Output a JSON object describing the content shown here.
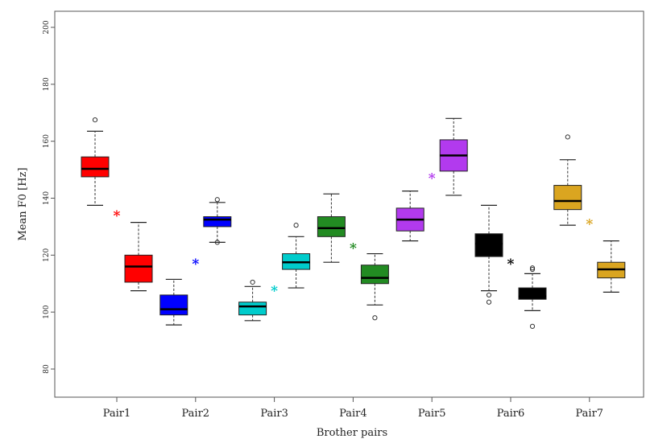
{
  "chart_data": {
    "type": "box",
    "xlabel": "Brother pairs",
    "ylabel": "Mean F0 [Hz]",
    "ylim": [
      70,
      205
    ],
    "yticks": [
      80,
      100,
      120,
      140,
      160,
      180,
      200
    ],
    "categories": [
      "Pair1",
      "Pair2",
      "Pair3",
      "Pair4",
      "Pair5",
      "Pair6",
      "Pair7"
    ],
    "grid": false,
    "legend": "none",
    "groups": [
      {
        "category": "Pair1",
        "color": "#ff0000",
        "boxes": [
          {
            "whisker_low": 137.5,
            "q1": 147.5,
            "median": 150.3,
            "q3": 154.5,
            "whisker_high": 163.5,
            "outliers": [
              167.5
            ]
          },
          {
            "whisker_low": 107.5,
            "q1": 110.5,
            "median": 116.0,
            "q3": 120.0,
            "whisker_high": 131.5,
            "outliers": []
          }
        ],
        "star_y": 134.0
      },
      {
        "category": "Pair2",
        "color": "#0000ff",
        "boxes": [
          {
            "whisker_low": 95.5,
            "q1": 99.0,
            "median": 101.0,
            "q3": 106.0,
            "whisker_high": 111.5,
            "outliers": []
          },
          {
            "whisker_low": 124.5,
            "q1": 130.0,
            "median": 132.5,
            "q3": 133.5,
            "whisker_high": 138.5,
            "outliers": [
              139.5,
              124.5
            ]
          }
        ],
        "star_y": 117.0
      },
      {
        "category": "Pair3",
        "color": "#00cccc",
        "boxes": [
          {
            "whisker_low": 97.0,
            "q1": 99.0,
            "median": 102.0,
            "q3": 103.5,
            "whisker_high": 109.0,
            "outliers": [
              110.5
            ]
          },
          {
            "whisker_low": 108.5,
            "q1": 115.0,
            "median": 117.5,
            "q3": 120.5,
            "whisker_high": 126.5,
            "outliers": [
              130.5
            ]
          }
        ],
        "star_y": 107.5
      },
      {
        "category": "Pair4",
        "color": "#228b22",
        "boxes": [
          {
            "whisker_low": 117.5,
            "q1": 126.5,
            "median": 129.5,
            "q3": 133.5,
            "whisker_high": 141.5,
            "outliers": []
          },
          {
            "whisker_low": 102.5,
            "q1": 110.0,
            "median": 112.0,
            "q3": 116.5,
            "whisker_high": 120.5,
            "outliers": [
              98.0
            ]
          }
        ],
        "star_y": 122.5
      },
      {
        "category": "Pair5",
        "color": "#b23aee",
        "boxes": [
          {
            "whisker_low": 125.0,
            "q1": 128.5,
            "median": 132.5,
            "q3": 136.5,
            "whisker_high": 142.5,
            "outliers": []
          },
          {
            "whisker_low": 141.0,
            "q1": 149.5,
            "median": 155.0,
            "q3": 160.5,
            "whisker_high": 168.0,
            "outliers": []
          }
        ],
        "star_y": 147.0
      },
      {
        "category": "Pair6",
        "color": "#000000",
        "boxes": [
          {
            "whisker_low": 107.5,
            "q1": 119.5,
            "median": 124.0,
            "q3": 127.5,
            "whisker_high": 137.5,
            "outliers": [
              106.0,
              103.5
            ]
          },
          {
            "whisker_low": 100.5,
            "q1": 104.5,
            "median": 105.5,
            "q3": 108.5,
            "whisker_high": 113.5,
            "outliers": [
              115.0,
              115.5,
              95.0
            ]
          }
        ],
        "star_y": 117.0
      },
      {
        "category": "Pair7",
        "color": "#daa520",
        "boxes": [
          {
            "whisker_low": 130.5,
            "q1": 136.0,
            "median": 139.0,
            "q3": 144.5,
            "whisker_high": 153.5,
            "outliers": [
              161.5
            ]
          },
          {
            "whisker_low": 107.0,
            "q1": 112.0,
            "median": 115.0,
            "q3": 117.5,
            "whisker_high": 125.0,
            "outliers": []
          }
        ],
        "star_y": 131.0
      }
    ]
  }
}
